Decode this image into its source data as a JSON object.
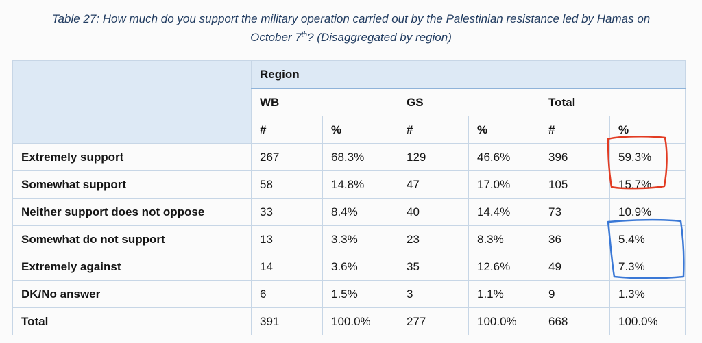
{
  "caption": {
    "line1": "Table 27: How much do you support the military operation carried out by the Palestinian resistance led by Hamas on",
    "line2_pre": "October 7",
    "line2_sup": "th",
    "line2_post": "? (Disaggregated by region)"
  },
  "table": {
    "region_label": "Region",
    "groups": [
      "WB",
      "GS",
      "Total"
    ],
    "subheaders": [
      "#",
      "%",
      "#",
      "%",
      "#",
      "%"
    ],
    "rows": [
      {
        "label": "Extremely support",
        "cells": [
          "267",
          "68.3%",
          "129",
          "46.6%",
          "396",
          "59.3%"
        ]
      },
      {
        "label": "Somewhat support",
        "cells": [
          "58",
          "14.8%",
          "47",
          "17.0%",
          "105",
          "15.7%"
        ]
      },
      {
        "label": "Neither support does not oppose",
        "cells": [
          "33",
          "8.4%",
          "40",
          "14.4%",
          "73",
          "10.9%"
        ]
      },
      {
        "label": "Somewhat do not support",
        "cells": [
          "13",
          "3.3%",
          "23",
          "8.3%",
          "36",
          "5.4%"
        ]
      },
      {
        "label": "Extremely against",
        "cells": [
          "14",
          "3.6%",
          "35",
          "12.6%",
          "49",
          "7.3%"
        ]
      },
      {
        "label": "DK/No answer",
        "cells": [
          "6",
          "1.5%",
          "3",
          "1.1%",
          "9",
          "1.3%"
        ]
      },
      {
        "label": "Total",
        "cells": [
          "391",
          "100.0%",
          "277",
          "100.0%",
          "668",
          "100.0%"
        ]
      }
    ]
  },
  "annotations": {
    "red_box_color": "#e23b22",
    "blue_box_color": "#3a78d6"
  }
}
